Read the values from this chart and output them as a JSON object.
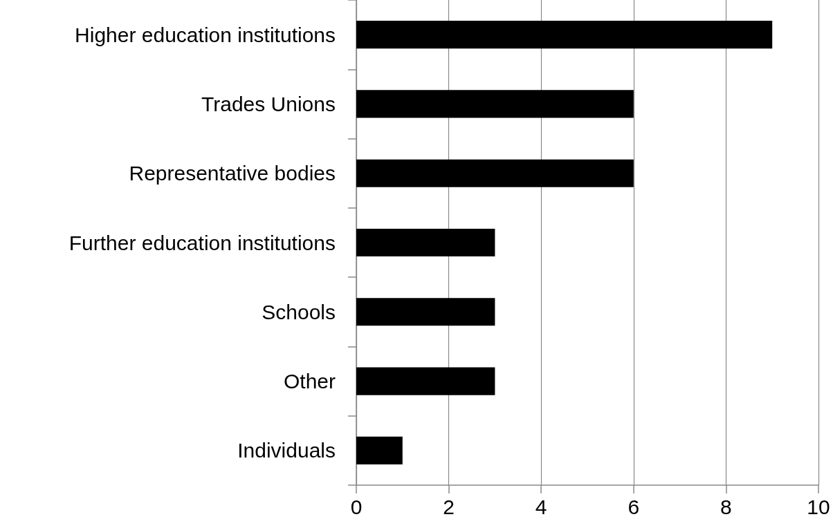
{
  "chart_data": {
    "type": "bar",
    "orientation": "horizontal",
    "categories": [
      "Higher education institutions",
      "Trades Unions",
      "Representative bodies",
      "Further education institutions",
      "Schools",
      "Other",
      "Individuals"
    ],
    "values": [
      9,
      6,
      6,
      3,
      3,
      3,
      1
    ],
    "color": "#000000",
    "xlim": [
      0,
      10
    ],
    "xticks": [
      0,
      2,
      4,
      6,
      8,
      10
    ],
    "grid": "x"
  }
}
